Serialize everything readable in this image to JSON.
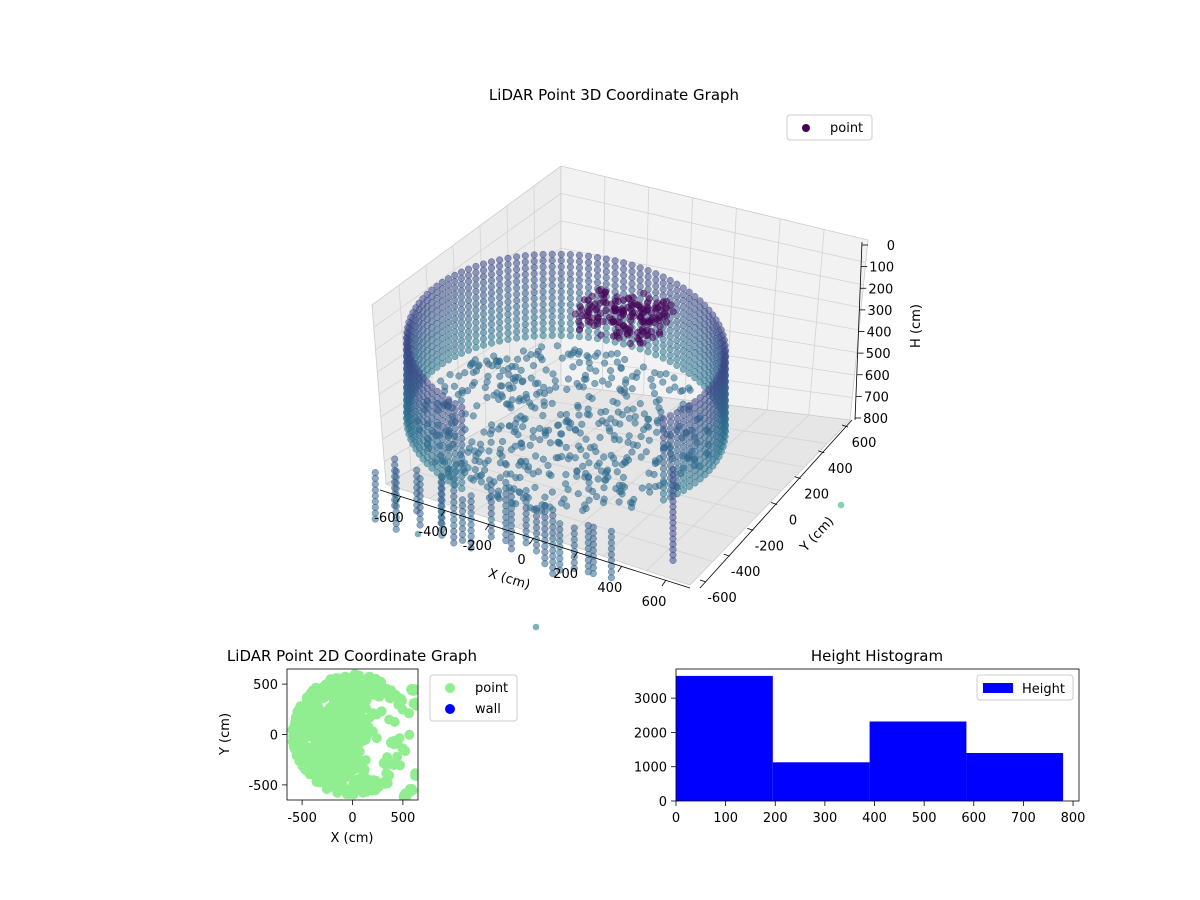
{
  "chart_data": [
    {
      "type": "scatter3d",
      "title": "LiDAR Point 3D Coordinate Graph",
      "xlabel": "X (cm)",
      "ylabel": "Y (cm)",
      "zlabel": "H (cm)",
      "xticks": [
        -600,
        -400,
        -200,
        0,
        200,
        400,
        600
      ],
      "yticks": [
        -600,
        -400,
        -200,
        0,
        200,
        400,
        600
      ],
      "zticks": [
        0,
        100,
        200,
        300,
        400,
        500,
        600,
        700,
        800
      ],
      "xlim": [
        -650,
        650
      ],
      "ylim": [
        -650,
        650
      ],
      "zlim": [
        0,
        800
      ],
      "z_inverted": true,
      "grid": true,
      "legend": {
        "placement": "upper-right",
        "entries": [
          "point"
        ]
      },
      "series": [
        {
          "name": "point",
          "colormap": "viridis",
          "marker_color": "#440154",
          "description_values": {
            "wall_ring_radius": 600,
            "wall_height_range": [
              50,
              420
            ],
            "floor_height": 420,
            "dense_cluster_center": [
              0,
              300,
              120
            ]
          }
        }
      ]
    },
    {
      "type": "scatter",
      "title": "LiDAR Point 2D Coordinate Graph",
      "xlabel": "X (cm)",
      "ylabel": "Y (cm)",
      "xticks": [
        -500,
        0,
        500
      ],
      "yticks": [
        500,
        0,
        -500
      ],
      "xlim": [
        -650,
        650
      ],
      "ylim": [
        -650,
        650
      ],
      "legend": {
        "placement": "right-outside",
        "entries": [
          "point",
          "wall"
        ]
      },
      "series": [
        {
          "name": "point",
          "color": "#90ee90"
        },
        {
          "name": "wall",
          "color": "#0000ff"
        }
      ]
    },
    {
      "type": "bar",
      "title": "Height Histogram",
      "xticks": [
        0,
        100,
        200,
        300,
        400,
        500,
        600,
        700,
        800
      ],
      "yticks": [
        0,
        1000,
        2000,
        3000
      ],
      "xlim": [
        0,
        812
      ],
      "ylim": [
        0,
        3850
      ],
      "bins": [
        {
          "start": 0,
          "end": 195,
          "value": 3650
        },
        {
          "start": 195,
          "end": 390,
          "value": 1130
        },
        {
          "start": 390,
          "end": 585,
          "value": 2320
        },
        {
          "start": 585,
          "end": 780,
          "value": 1400
        }
      ],
      "color": "#0000ff",
      "legend": {
        "placement": "upper-right",
        "entries": [
          "Height"
        ]
      }
    }
  ]
}
